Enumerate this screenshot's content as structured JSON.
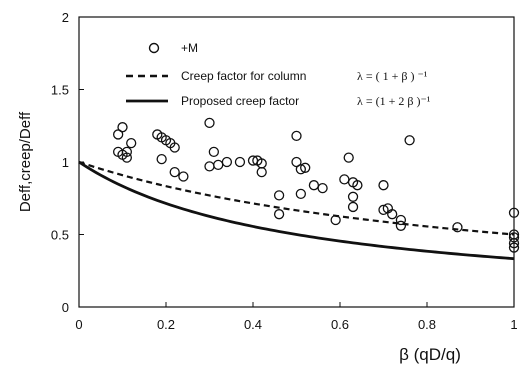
{
  "chart_data": {
    "type": "scatter",
    "title": "",
    "xlabel": "β (qD/q)",
    "ylabel": "Deff,creep/Deff",
    "xlim": [
      0,
      1
    ],
    "ylim": [
      0,
      2
    ],
    "x_ticks": [
      "0",
      "0.2",
      "0.4",
      "0.6",
      "0.8",
      "1"
    ],
    "y_ticks": [
      "0",
      "0.5",
      "1",
      "1.5",
      "2"
    ],
    "grid": false,
    "legend_position": "top-left inside",
    "series": [
      {
        "name": "+M",
        "kind": "scatter",
        "marker": "open-circle",
        "points": [
          [
            0.09,
            1.19
          ],
          [
            0.1,
            1.24
          ],
          [
            0.09,
            1.07
          ],
          [
            0.1,
            1.05
          ],
          [
            0.11,
            1.07
          ],
          [
            0.11,
            1.03
          ],
          [
            0.12,
            1.13
          ],
          [
            0.18,
            1.19
          ],
          [
            0.19,
            1.17
          ],
          [
            0.2,
            1.15
          ],
          [
            0.21,
            1.13
          ],
          [
            0.22,
            1.1
          ],
          [
            0.19,
            1.02
          ],
          [
            0.22,
            0.93
          ],
          [
            0.24,
            0.9
          ],
          [
            0.3,
            1.27
          ],
          [
            0.3,
            0.97
          ],
          [
            0.31,
            1.07
          ],
          [
            0.32,
            0.98
          ],
          [
            0.34,
            1.0
          ],
          [
            0.37,
            1.0
          ],
          [
            0.4,
            1.01
          ],
          [
            0.41,
            1.01
          ],
          [
            0.42,
            0.99
          ],
          [
            0.42,
            0.93
          ],
          [
            0.46,
            0.77
          ],
          [
            0.46,
            0.64
          ],
          [
            0.5,
            1.18
          ],
          [
            0.5,
            1.0
          ],
          [
            0.51,
            0.95
          ],
          [
            0.52,
            0.96
          ],
          [
            0.51,
            0.78
          ],
          [
            0.54,
            0.84
          ],
          [
            0.56,
            0.82
          ],
          [
            0.59,
            0.6
          ],
          [
            0.61,
            0.88
          ],
          [
            0.62,
            1.03
          ],
          [
            0.63,
            0.86
          ],
          [
            0.64,
            0.84
          ],
          [
            0.63,
            0.76
          ],
          [
            0.63,
            0.69
          ],
          [
            0.7,
            0.84
          ],
          [
            0.7,
            0.67
          ],
          [
            0.71,
            0.68
          ],
          [
            0.72,
            0.64
          ],
          [
            0.74,
            0.6
          ],
          [
            0.74,
            0.56
          ],
          [
            0.76,
            1.15
          ],
          [
            0.87,
            0.55
          ],
          [
            1.0,
            0.65
          ],
          [
            1.0,
            0.5
          ],
          [
            1.0,
            0.48
          ],
          [
            1.0,
            0.44
          ],
          [
            1.0,
            0.41
          ]
        ]
      },
      {
        "name": "Creep factor for column",
        "kind": "line",
        "style": "dashed",
        "formula": "λ = ( 1 + β ) ⁻¹",
        "function": "1/(1+x)"
      },
      {
        "name": "Proposed creep factor",
        "kind": "line",
        "style": "solid",
        "formula": "λ = (1 + 2 β )⁻¹",
        "function": "1/(1+2x)"
      }
    ]
  }
}
